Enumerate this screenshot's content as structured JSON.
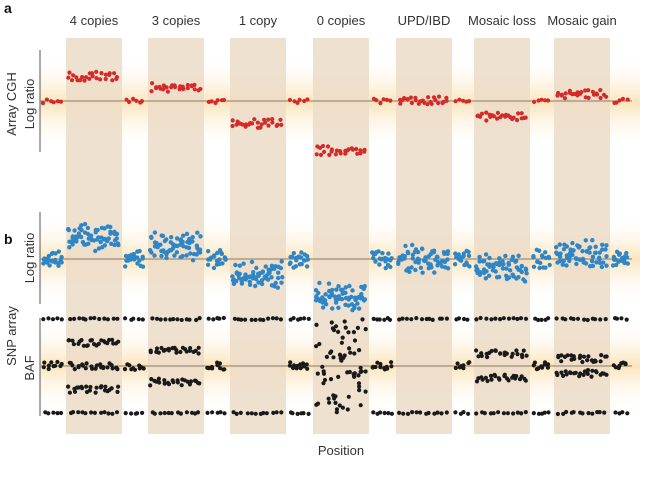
{
  "panel_labels": {
    "a": "a",
    "b": "b"
  },
  "y_titles": {
    "array_cgh": "Array CGH",
    "log_ratio_a": "Log ratio",
    "snp_array": "SNP array",
    "log_ratio_b": "Log ratio",
    "baf": "BAF"
  },
  "xlabel": "Position",
  "colors": {
    "cgh": "#d42a2a",
    "snp": "#2f86c6",
    "baf": "#1a1a1a",
    "column": "#ecdcc8",
    "glow": "#fbe3b8",
    "baseline": "#8a7a68"
  },
  "chart_data": {
    "type": "scatter",
    "categories": [
      "4 copies",
      "3 copies",
      "1 copy",
      "0 copies",
      "UPD/IBD",
      "Mosaic loss",
      "Mosaic gain"
    ],
    "normal_logr": 0,
    "normal_baf_levels": [
      0,
      0.5,
      1
    ],
    "series": [
      {
        "name": "Array CGH log ratio",
        "levels": [
          0.55,
          0.3,
          -0.5,
          -1.1,
          0,
          -0.35,
          0.15
        ],
        "normal_level": 0
      },
      {
        "name": "SNP array log ratio",
        "levels": [
          0.6,
          0.35,
          -0.45,
          -1.05,
          0,
          -0.25,
          0.15
        ],
        "normal_level": 0
      },
      {
        "name": "SNP array BAF",
        "bands": [
          [
            0,
            0.25,
            0.5,
            0.75,
            1
          ],
          [
            0,
            0.33,
            0.67,
            1
          ],
          [
            0,
            1
          ],
          [],
          [
            0,
            1
          ],
          [
            0,
            0.37,
            0.63,
            1
          ],
          [
            0,
            0.42,
            0.58,
            1
          ]
        ],
        "normal_bands": [
          0,
          0.5,
          1
        ]
      }
    ]
  }
}
